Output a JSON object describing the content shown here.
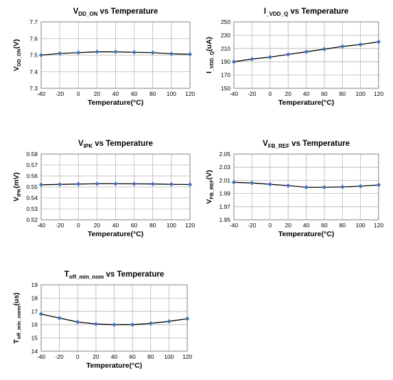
{
  "chart_data": [
    {
      "type": "line",
      "title": {
        "main": "V",
        "sub": "DD_ON",
        "rest": " vs Temperature"
      },
      "ylabel": {
        "main": "V",
        "sub": "DD_ON",
        "rest": "(V)"
      },
      "xlabel": "Temperature(°C)",
      "x": [
        -40,
        -20,
        0,
        20,
        40,
        60,
        80,
        100,
        120
      ],
      "x_ticks": [
        "-40",
        "-20",
        "0",
        "20",
        "40",
        "60",
        "80",
        "100",
        "120"
      ],
      "y_ticks": [
        "7.3",
        "7.4",
        "7.5",
        "7.6",
        "7.7"
      ],
      "ylim": [
        7.3,
        7.7
      ],
      "series": [
        {
          "values": [
            7.5,
            7.51,
            7.515,
            7.52,
            7.52,
            7.517,
            7.515,
            7.508,
            7.505
          ]
        }
      ],
      "grid": true
    },
    {
      "type": "line",
      "title": {
        "main": "I",
        "sub": "_VDD_Q",
        "rest": " vs Temperature"
      },
      "ylabel": {
        "main": "I",
        "sub": "_VDD_Q",
        "rest": "(uA)"
      },
      "xlabel": "Temperature(°C)",
      "x": [
        -40,
        -20,
        0,
        20,
        40,
        60,
        80,
        100,
        120
      ],
      "x_ticks": [
        "-40",
        "-20",
        "0",
        "20",
        "40",
        "60",
        "80",
        "100",
        "120"
      ],
      "y_ticks": [
        "150",
        "170",
        "190",
        "210",
        "230",
        "250"
      ],
      "ylim": [
        150,
        250
      ],
      "series": [
        {
          "values": [
            190,
            194,
            197,
            201,
            205,
            209,
            213,
            216,
            220
          ]
        }
      ],
      "grid": true
    },
    {
      "type": "line",
      "title": {
        "main": "V",
        "sub": "IPK",
        "rest": " vs Temperature"
      },
      "ylabel": {
        "main": "V",
        "sub": "IPK",
        "rest": "(mV)"
      },
      "xlabel": "Temperature(°C)",
      "x": [
        -40,
        -20,
        0,
        20,
        40,
        60,
        80,
        100,
        120
      ],
      "x_ticks": [
        "-40",
        "-20",
        "0",
        "20",
        "40",
        "60",
        "80",
        "100",
        "120"
      ],
      "y_ticks": [
        "0.52",
        "0.53",
        "0.54",
        "0.55",
        "0.56",
        "0.57",
        "0.58"
      ],
      "ylim": [
        0.52,
        0.58
      ],
      "series": [
        {
          "values": [
            0.552,
            0.5523,
            0.5526,
            0.5529,
            0.5529,
            0.5528,
            0.5527,
            0.5524,
            0.5522
          ]
        }
      ],
      "grid": true
    },
    {
      "type": "line",
      "title": {
        "main": "V",
        "sub": "FB_REF",
        "rest": " vs Temperature"
      },
      "ylabel": {
        "main": "V",
        "sub": "FB_REF",
        "rest": "(V)"
      },
      "xlabel": "Temperature(°C)",
      "x": [
        -40,
        -20,
        0,
        20,
        40,
        60,
        80,
        100,
        120
      ],
      "x_ticks": [
        "-40",
        "-20",
        "0",
        "20",
        "40",
        "60",
        "80",
        "100",
        "120"
      ],
      "y_ticks": [
        "1.95",
        "1.97",
        "1.99",
        "2.01",
        "2.03",
        "2.05"
      ],
      "ylim": [
        1.95,
        2.05
      ],
      "series": [
        {
          "values": [
            2.007,
            2.006,
            2.004,
            2.002,
            1.9995,
            1.9995,
            2.0,
            2.001,
            2.003
          ]
        }
      ],
      "grid": true
    },
    {
      "type": "line",
      "title": {
        "main": "T",
        "sub": "off_min_nom",
        "rest": " vs Temperature"
      },
      "ylabel": {
        "main": "T",
        "sub": "off_min_norm",
        "rest": "(us)"
      },
      "xlabel": "Temperature(°C)",
      "x": [
        -40,
        -20,
        0,
        20,
        40,
        60,
        80,
        100,
        120
      ],
      "x_ticks": [
        "-40",
        "-20",
        "0",
        "20",
        "40",
        "60",
        "80",
        "100",
        "120"
      ],
      "y_ticks": [
        "14",
        "15",
        "16",
        "17",
        "18",
        "19"
      ],
      "ylim": [
        14,
        19
      ],
      "series": [
        {
          "values": [
            16.8,
            16.5,
            16.2,
            16.05,
            16.0,
            16.0,
            16.1,
            16.25,
            16.45
          ]
        }
      ],
      "grid": true
    }
  ],
  "colors": {
    "marker": "#4472c4",
    "line": "#000000",
    "grid": "#b5b5b5"
  }
}
